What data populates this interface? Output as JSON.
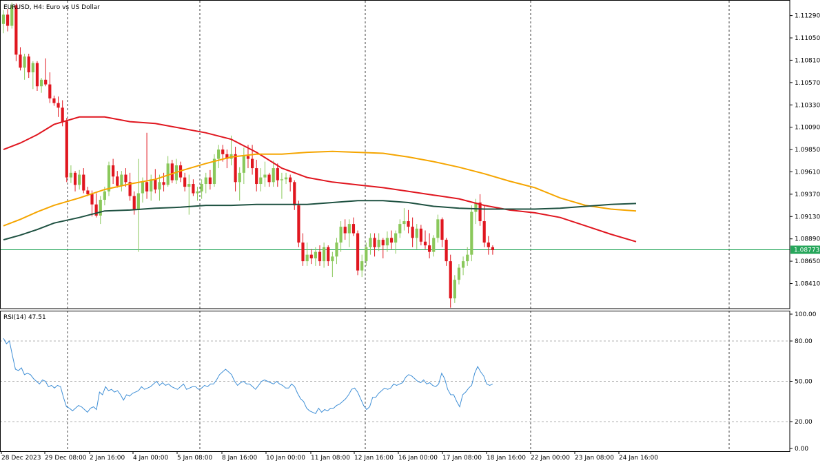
{
  "chart_data": {
    "type": "candlestick",
    "title": "EURUSD, H4:  Euro vs US Dollar",
    "price_axis": {
      "ticks": [
        "1.11290",
        "1.11050",
        "1.10810",
        "1.10570",
        "1.10330",
        "1.10090",
        "1.09850",
        "1.09610",
        "1.09370",
        "1.09130",
        "1.08890",
        "1.08650",
        "1.08410"
      ],
      "ylim": [
        1.0814,
        1.1145
      ]
    },
    "current_price": {
      "label": "1.08773",
      "value": 1.08773,
      "color": "#26a65b"
    },
    "x_labels": [
      "28 Dec 2023",
      "29 Dec 08:00",
      "2 Jan 16:00",
      "4 Jan 00:00",
      "5 Jan 08:00",
      "8 Jan 16:00",
      "10 Jan 00:00",
      "11 Jan 08:00",
      "12 Jan 16:00",
      "16 Jan 00:00",
      "17 Jan 08:00",
      "18 Jan 16:00",
      "22 Jan 00:00",
      "23 Jan 08:00",
      "24 Jan 16:00"
    ],
    "colors": {
      "bull": "#8ac85b",
      "bear": "#e0161f",
      "ma_red": "#e0161f",
      "ma_orange": "#f5a500",
      "ma_dark": "#1e5141",
      "rsi": "#3f8fd6"
    },
    "ohlc": [
      [
        1.112,
        1.1135,
        1.111,
        1.113
      ],
      [
        1.113,
        1.1136,
        1.1112,
        1.1118
      ],
      [
        1.1118,
        1.1143,
        1.1115,
        1.114
      ],
      [
        1.114,
        1.1142,
        1.108,
        1.1087
      ],
      [
        1.1087,
        1.1095,
        1.107,
        1.1073
      ],
      [
        1.1073,
        1.1088,
        1.106,
        1.1085
      ],
      [
        1.1085,
        1.1088,
        1.1062,
        1.1068
      ],
      [
        1.1068,
        1.108,
        1.105,
        1.1078
      ],
      [
        1.1078,
        1.108,
        1.1048,
        1.1053
      ],
      [
        1.1053,
        1.1062,
        1.1046,
        1.106
      ],
      [
        1.106,
        1.1083,
        1.1053,
        1.1055
      ],
      [
        1.1055,
        1.1068,
        1.1035,
        1.104
      ],
      [
        1.104,
        1.1043,
        1.1032,
        1.1035
      ],
      [
        1.1035,
        1.1042,
        1.102,
        1.103
      ],
      [
        1.103,
        1.1038,
        1.101,
        1.1015
      ],
      [
        1.1015,
        1.1019,
        1.095,
        1.0955
      ],
      [
        1.0955,
        1.0968,
        1.0949,
        1.096
      ],
      [
        1.096,
        1.0962,
        1.094,
        1.0947
      ],
      [
        1.0947,
        1.0963,
        1.0942,
        1.0958
      ],
      [
        1.0958,
        1.0965,
        1.0938,
        1.0941
      ],
      [
        1.0941,
        1.0945,
        1.0935,
        1.0937
      ],
      [
        1.0937,
        1.0941,
        1.0913,
        1.0926
      ],
      [
        1.0926,
        1.0938,
        1.0912,
        1.0914
      ],
      [
        1.0914,
        1.0935,
        1.0905,
        1.0931
      ],
      [
        1.0931,
        1.0945,
        1.0925,
        1.094
      ],
      [
        1.094,
        1.0972,
        1.0935,
        1.0968
      ],
      [
        1.0968,
        1.0975,
        1.0948,
        1.0956
      ],
      [
        1.0956,
        1.0962,
        1.0944,
        1.0946
      ],
      [
        1.0946,
        1.0962,
        1.094,
        1.0958
      ],
      [
        1.0958,
        1.0965,
        1.0945,
        1.095
      ],
      [
        1.095,
        1.096,
        1.093,
        1.0935
      ],
      [
        1.0935,
        1.094,
        1.0915,
        1.092
      ],
      [
        1.092,
        1.0975,
        1.0875,
        1.0938
      ],
      [
        1.0938,
        1.0955,
        1.0928,
        1.095
      ],
      [
        1.095,
        1.1003,
        1.0932,
        1.094
      ],
      [
        1.094,
        1.0958,
        1.093,
        1.0953
      ],
      [
        1.0953,
        1.0964,
        1.0938,
        1.0942
      ],
      [
        1.0942,
        1.0958,
        1.093,
        1.095
      ],
      [
        1.095,
        1.096,
        1.094,
        1.0947
      ],
      [
        1.0947,
        1.0978,
        1.0945,
        1.097
      ],
      [
        1.097,
        1.0974,
        1.0949,
        1.0952
      ],
      [
        1.0952,
        1.0975,
        1.0948,
        1.0968
      ],
      [
        1.0968,
        1.0972,
        1.095,
        1.0955
      ],
      [
        1.0955,
        1.096,
        1.094,
        1.0945
      ],
      [
        1.0945,
        1.0958,
        1.0915,
        1.0948
      ],
      [
        1.0948,
        1.0953,
        1.0935,
        1.0938
      ],
      [
        1.0938,
        1.0945,
        1.093,
        1.094
      ],
      [
        1.094,
        1.0953,
        1.0932,
        1.0948
      ],
      [
        1.0948,
        1.096,
        1.0938,
        1.0955
      ],
      [
        1.0955,
        1.0963,
        1.0942,
        1.0948
      ],
      [
        1.0948,
        1.098,
        1.0945,
        1.0975
      ],
      [
        1.0975,
        1.099,
        1.0965,
        1.0985
      ],
      [
        1.0985,
        1.099,
        1.0972,
        1.098
      ],
      [
        1.098,
        1.0985,
        1.0965,
        1.0975
      ],
      [
        1.0975,
        1.1,
        1.0968,
        1.098
      ],
      [
        1.098,
        1.0988,
        1.094,
        1.095
      ],
      [
        1.095,
        1.0966,
        1.093,
        1.096
      ],
      [
        1.096,
        1.0987,
        1.0948,
        1.0978
      ],
      [
        1.0978,
        1.099,
        1.0965,
        1.0975
      ],
      [
        1.0975,
        1.099,
        1.0958,
        1.0965
      ],
      [
        1.0965,
        1.0974,
        1.094,
        1.0948
      ],
      [
        1.0948,
        1.0965,
        1.094,
        1.0955
      ],
      [
        1.0955,
        1.0972,
        1.0945,
        1.0958
      ],
      [
        1.0958,
        1.096,
        1.0945,
        1.095
      ],
      [
        1.095,
        1.0973,
        1.0945,
        1.0965
      ],
      [
        1.0965,
        1.097,
        1.0945,
        1.0952
      ],
      [
        1.0952,
        1.096,
        1.0932,
        1.0953
      ],
      [
        1.0953,
        1.096,
        1.0948,
        1.0955
      ],
      [
        1.0955,
        1.0958,
        1.094,
        1.095
      ],
      [
        1.095,
        1.0952,
        1.092,
        1.0925
      ],
      [
        1.0925,
        1.093,
        1.088,
        1.0885
      ],
      [
        1.0885,
        1.0895,
        1.086,
        1.0865
      ],
      [
        1.0865,
        1.0885,
        1.086,
        1.0872
      ],
      [
        1.0872,
        1.0878,
        1.0862,
        1.0868
      ],
      [
        1.0868,
        1.088,
        1.086,
        1.0875
      ],
      [
        1.0875,
        1.0882,
        1.086,
        1.0865
      ],
      [
        1.0865,
        1.0885,
        1.0858,
        1.088
      ],
      [
        1.088,
        1.0882,
        1.086,
        1.0865
      ],
      [
        1.0865,
        1.0875,
        1.0848,
        1.087
      ],
      [
        1.087,
        1.089,
        1.0862,
        1.0885
      ],
      [
        1.0885,
        1.0908,
        1.0875,
        1.0902
      ],
      [
        1.0902,
        1.091,
        1.0888,
        1.0895
      ],
      [
        1.0895,
        1.091,
        1.088,
        1.0905
      ],
      [
        1.0905,
        1.0912,
        1.0892,
        1.0895
      ],
      [
        1.0895,
        1.0898,
        1.085,
        1.0855
      ],
      [
        1.0855,
        1.0872,
        1.0848,
        1.0865
      ],
      [
        1.0865,
        1.0885,
        1.086,
        1.088
      ],
      [
        1.088,
        1.0895,
        1.0872,
        1.089
      ],
      [
        1.089,
        1.0895,
        1.087,
        1.088
      ],
      [
        1.088,
        1.0895,
        1.0876,
        1.0888
      ],
      [
        1.0888,
        1.089,
        1.0868,
        1.0882
      ],
      [
        1.0882,
        1.0897,
        1.0875,
        1.089
      ],
      [
        1.089,
        1.0898,
        1.0878,
        1.0885
      ],
      [
        1.0885,
        1.0898,
        1.0873,
        1.0895
      ],
      [
        1.0895,
        1.091,
        1.089,
        1.0905
      ],
      [
        1.0905,
        1.0922,
        1.0898,
        1.0908
      ],
      [
        1.0908,
        1.092,
        1.0895,
        1.0902
      ],
      [
        1.0902,
        1.0912,
        1.088,
        1.089
      ],
      [
        1.089,
        1.0905,
        1.0878,
        1.09
      ],
      [
        1.09,
        1.0904,
        1.0882,
        1.0886
      ],
      [
        1.0886,
        1.0898,
        1.0878,
        1.0882
      ],
      [
        1.0882,
        1.0895,
        1.0868,
        1.0875
      ],
      [
        1.0875,
        1.0893,
        1.087,
        1.089
      ],
      [
        1.089,
        1.0915,
        1.0885,
        1.091
      ],
      [
        1.091,
        1.0912,
        1.088,
        1.0888
      ],
      [
        1.0888,
        1.089,
        1.086,
        1.0865
      ],
      [
        1.0865,
        1.0872,
        1.0815,
        1.0825
      ],
      [
        1.0825,
        1.085,
        1.082,
        1.0845
      ],
      [
        1.0845,
        1.0862,
        1.084,
        1.0858
      ],
      [
        1.0858,
        1.087,
        1.085,
        1.0865
      ],
      [
        1.0865,
        1.088,
        1.086,
        1.0872
      ],
      [
        1.0872,
        1.0925,
        1.0865,
        1.0918
      ],
      [
        1.0918,
        1.0932,
        1.0905,
        1.0928
      ],
      [
        1.0928,
        1.0937,
        1.0903,
        1.0908
      ],
      [
        1.0908,
        1.0925,
        1.088,
        1.0885
      ],
      [
        1.0885,
        1.0892,
        1.0872,
        1.088
      ],
      [
        1.088,
        1.0882,
        1.0872,
        1.0877
      ]
    ],
    "moving_averages": [
      {
        "color": "#e0161f",
        "points": [
          [
            0,
            1.0985
          ],
          [
            4,
            1.0992
          ],
          [
            8,
            1.1001
          ],
          [
            12,
            1.1012
          ],
          [
            18,
            1.102
          ],
          [
            24,
            1.102
          ],
          [
            30,
            1.1015
          ],
          [
            36,
            1.1013
          ],
          [
            42,
            1.1008
          ],
          [
            48,
            1.1003
          ],
          [
            54,
            1.0996
          ],
          [
            60,
            1.0982
          ],
          [
            66,
            1.0965
          ],
          [
            72,
            1.0955
          ],
          [
            78,
            1.095
          ],
          [
            84,
            1.0947
          ],
          [
            90,
            1.0944
          ],
          [
            96,
            1.094
          ],
          [
            102,
            1.0936
          ],
          [
            108,
            1.0932
          ],
          [
            114,
            1.0925
          ],
          [
            120,
            1.092
          ],
          [
            126,
            1.0917
          ],
          [
            132,
            1.0912
          ],
          [
            138,
            1.0903
          ],
          [
            144,
            1.0894
          ],
          [
            150,
            1.0886
          ]
        ]
      },
      {
        "color": "#f5a500",
        "points": [
          [
            0,
            1.0903
          ],
          [
            4,
            1.091
          ],
          [
            8,
            1.0918
          ],
          [
            12,
            1.0925
          ],
          [
            18,
            1.0933
          ],
          [
            24,
            1.0942
          ],
          [
            30,
            1.0948
          ],
          [
            36,
            1.0953
          ],
          [
            42,
            1.0962
          ],
          [
            48,
            1.097
          ],
          [
            54,
            1.0977
          ],
          [
            60,
            1.098
          ],
          [
            66,
            1.098
          ],
          [
            72,
            1.0982
          ],
          [
            78,
            1.0983
          ],
          [
            84,
            1.0982
          ],
          [
            90,
            1.0981
          ],
          [
            96,
            1.0977
          ],
          [
            102,
            1.0972
          ],
          [
            108,
            1.0966
          ],
          [
            114,
            1.0959
          ],
          [
            120,
            1.0951
          ],
          [
            126,
            1.0944
          ],
          [
            132,
            1.0933
          ],
          [
            138,
            1.0925
          ],
          [
            144,
            1.0921
          ],
          [
            150,
            1.0919
          ]
        ]
      },
      {
        "color": "#1e5141",
        "points": [
          [
            0,
            1.0888
          ],
          [
            4,
            1.0893
          ],
          [
            8,
            1.0899
          ],
          [
            12,
            1.0906
          ],
          [
            18,
            1.0912
          ],
          [
            24,
            1.0919
          ],
          [
            30,
            1.092
          ],
          [
            36,
            1.0922
          ],
          [
            42,
            1.0923
          ],
          [
            48,
            1.0925
          ],
          [
            54,
            1.0925
          ],
          [
            60,
            1.0926
          ],
          [
            66,
            1.0926
          ],
          [
            72,
            1.0926
          ],
          [
            78,
            1.0928
          ],
          [
            84,
            1.093
          ],
          [
            90,
            1.093
          ],
          [
            96,
            1.0928
          ],
          [
            102,
            1.0924
          ],
          [
            108,
            1.0922
          ],
          [
            114,
            1.0921
          ],
          [
            120,
            1.0921
          ],
          [
            126,
            1.0921
          ],
          [
            132,
            1.0922
          ],
          [
            138,
            1.0924
          ],
          [
            144,
            1.0926
          ],
          [
            150,
            1.0927
          ]
        ]
      }
    ],
    "rsi": {
      "label": "RSI(14) 47.51",
      "ticks": [
        "100.00",
        "80.00",
        "50.00",
        "20.00",
        "0.00"
      ],
      "levels": [
        80,
        50,
        20
      ],
      "ylim": [
        0,
        100
      ],
      "values": [
        82,
        78,
        80,
        69,
        59,
        58,
        60,
        55,
        56,
        55,
        52,
        50,
        48,
        51,
        50,
        46,
        47,
        45,
        47,
        46,
        38,
        31,
        30,
        28,
        30,
        32,
        31,
        29,
        27,
        30,
        31,
        29,
        42,
        40,
        46,
        43,
        44,
        42,
        43,
        40,
        36,
        40,
        39,
        41,
        42,
        43,
        46,
        44,
        45,
        46,
        48,
        50,
        47,
        49,
        47,
        48,
        46,
        45,
        44,
        46,
        48,
        44,
        45,
        46,
        46,
        44,
        45,
        47,
        46,
        48,
        48,
        51,
        55,
        57,
        59,
        57,
        55,
        50,
        47,
        49,
        50,
        48,
        48,
        46,
        44,
        47,
        50,
        51,
        50,
        49,
        48,
        50,
        48,
        47,
        45,
        45,
        48,
        46,
        41,
        37,
        35,
        30,
        28,
        27,
        26,
        30,
        27,
        29,
        28,
        30,
        30,
        32,
        33,
        35,
        37,
        40,
        44,
        45,
        42,
        37,
        32,
        29,
        31,
        38,
        38,
        41,
        43,
        45,
        44,
        45,
        48,
        47,
        48,
        49,
        53,
        55,
        54,
        52,
        50,
        49,
        51,
        48,
        49,
        47,
        46,
        48,
        56,
        52,
        44,
        40,
        40,
        35,
        31,
        40,
        42,
        45,
        47,
        56,
        61,
        57,
        54,
        48,
        47,
        48
      ]
    }
  }
}
